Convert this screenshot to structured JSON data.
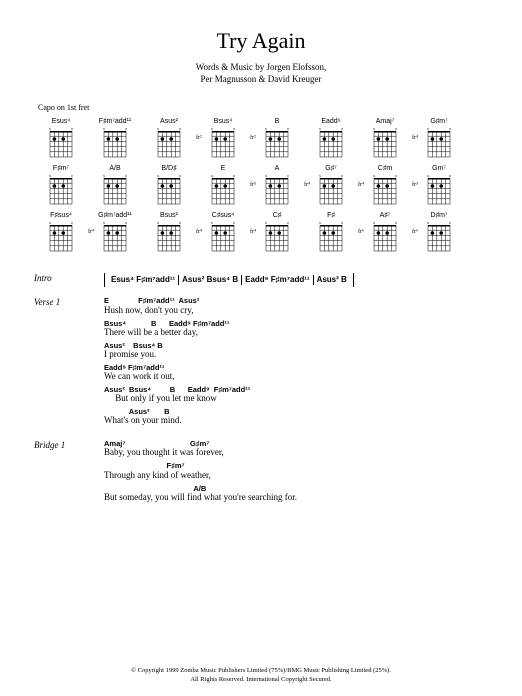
{
  "title": "Try Again",
  "credits_line1": "Words & Music by Jorgen Elofsson,",
  "credits_line2": "Per Magnusson & David Kreuger",
  "capo": "Capo on 1st fret",
  "chords": [
    {
      "name": "Esus⁴",
      "fret": ""
    },
    {
      "name": "F♯m⁷add¹¹",
      "fret": ""
    },
    {
      "name": "Asus²",
      "fret": ""
    },
    {
      "name": "Bsus⁴",
      "fret": "fr²"
    },
    {
      "name": "B",
      "fret": "fr²"
    },
    {
      "name": "Eadd⁹",
      "fret": ""
    },
    {
      "name": "Amaj⁷",
      "fret": ""
    },
    {
      "name": "G♯m⁷",
      "fret": "fr⁴"
    },
    {
      "name": "F♯m⁷",
      "fret": ""
    },
    {
      "name": "A/B",
      "fret": ""
    },
    {
      "name": "B/D♯",
      "fret": ""
    },
    {
      "name": "E",
      "fret": ""
    },
    {
      "name": "A",
      "fret": "fr⁵"
    },
    {
      "name": "G♯⁷",
      "fret": "fr⁴"
    },
    {
      "name": "C♯m",
      "fret": "fr⁴"
    },
    {
      "name": "Gm⁷",
      "fret": "fr³"
    },
    {
      "name": "F♯sus⁴",
      "fret": ""
    },
    {
      "name": "G♯m⁷add¹¹",
      "fret": "fr⁴"
    },
    {
      "name": "Bsus²",
      "fret": ""
    },
    {
      "name": "C♯sus⁴",
      "fret": "fr⁴"
    },
    {
      "name": "C♯",
      "fret": "fr⁴"
    },
    {
      "name": "F♯",
      "fret": ""
    },
    {
      "name": "A♯⁷",
      "fret": "fr⁶"
    },
    {
      "name": "D♯m⁷",
      "fret": "fr⁶"
    }
  ],
  "intro": {
    "label": "Intro",
    "seg1": "Esus⁴ F♯m⁷add¹¹",
    "seg2": "Asus² Bsus⁴ B",
    "seg3": "Eadd⁹ F♯m⁷add¹¹",
    "seg4": "Asus² B"
  },
  "verse1": {
    "label": "Verse 1",
    "l1c": "E              F♯m⁷add¹¹  Asus²",
    "l1": "Hush now, don't you cry,",
    "l2c": "Bsus⁴            B      Eadd⁹ F♯m⁷add¹¹",
    "l2": "There will be a better day,",
    "l3c": "Asus²    Bsus⁴ B",
    "l3": "I promise you.",
    "l4c": "Eadd⁹ F♯m⁷add¹¹",
    "l4": "We can work it out,",
    "l5c": "Asus²  Bsus⁴         B      Eadd⁹  F♯m⁷add¹¹",
    "l5": "     But only if you let me know",
    "l6c": "            Asus²       B",
    "l6": "What's on your mind."
  },
  "bridge1": {
    "label": "Bridge 1",
    "l1c": "Amaj⁷                               G♯m⁷",
    "l1": "Baby, you thought it was forever,",
    "l2c": "                              F♯m⁷",
    "l2": "Through any kind of weather,",
    "l3c": "                                           A/B",
    "l3": "But someday, you will find what you're searching for."
  },
  "copyright": {
    "l1": "© Copyright 1999 Zomba Music Publishers Limited (75%)/BMG Music Publishing Limited (25%).",
    "l2": "All Rights Reserved. International Copyright Secured."
  }
}
